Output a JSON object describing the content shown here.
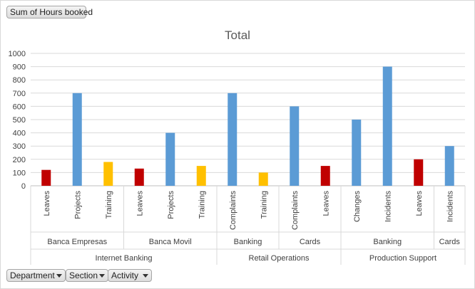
{
  "value_field": {
    "label": "Sum of Hours booked"
  },
  "axis_fields": [
    {
      "label": "Department"
    },
    {
      "label": "Section"
    },
    {
      "label": "Activity"
    }
  ],
  "colors": {
    "leaves": "#c00000",
    "projects": "#5b9bd5",
    "training": "#ffc000",
    "grid": "#d9d9d9",
    "axis": "#bfbfbf"
  },
  "chart_data": {
    "type": "bar",
    "title": "Total",
    "xlabel": "",
    "ylabel": "",
    "ylim": [
      0,
      1000
    ],
    "yticks": [
      0,
      100,
      200,
      300,
      400,
      500,
      600,
      700,
      800,
      900,
      1000
    ],
    "grid": true,
    "legend": "none",
    "categories": [
      {
        "department": "Internet Banking",
        "section": "Banca Empresas",
        "activity": "Leaves",
        "value": 120,
        "color": "#c00000"
      },
      {
        "department": "Internet Banking",
        "section": "Banca Empresas",
        "activity": "Projects",
        "value": 700,
        "color": "#5b9bd5"
      },
      {
        "department": "Internet Banking",
        "section": "Banca Empresas",
        "activity": "Training",
        "value": 180,
        "color": "#ffc000"
      },
      {
        "department": "Internet Banking",
        "section": "Banca Movil",
        "activity": "Leaves",
        "value": 130,
        "color": "#c00000"
      },
      {
        "department": "Internet Banking",
        "section": "Banca Movil",
        "activity": "Projects",
        "value": 400,
        "color": "#5b9bd5"
      },
      {
        "department": "Internet Banking",
        "section": "Banca Movil",
        "activity": "Training",
        "value": 150,
        "color": "#ffc000"
      },
      {
        "department": "Retail Operations",
        "section": "Banking",
        "activity": "Complaints",
        "value": 700,
        "color": "#5b9bd5"
      },
      {
        "department": "Retail Operations",
        "section": "Banking",
        "activity": "Training",
        "value": 100,
        "color": "#ffc000"
      },
      {
        "department": "Retail Operations",
        "section": "Cards",
        "activity": "Complaints",
        "value": 600,
        "color": "#5b9bd5"
      },
      {
        "department": "Retail Operations",
        "section": "Cards",
        "activity": "Leaves",
        "value": 150,
        "color": "#c00000"
      },
      {
        "department": "Production Support",
        "section": "Banking",
        "activity": "Changes",
        "value": 500,
        "color": "#5b9bd5"
      },
      {
        "department": "Production Support",
        "section": "Banking",
        "activity": "Incidents",
        "value": 900,
        "color": "#5b9bd5"
      },
      {
        "department": "Production Support",
        "section": "Banking",
        "activity": "Leaves",
        "value": 200,
        "color": "#c00000"
      },
      {
        "department": "Production Support",
        "section": "Cards",
        "activity": "Incidents",
        "value": 300,
        "color": "#5b9bd5"
      }
    ]
  }
}
